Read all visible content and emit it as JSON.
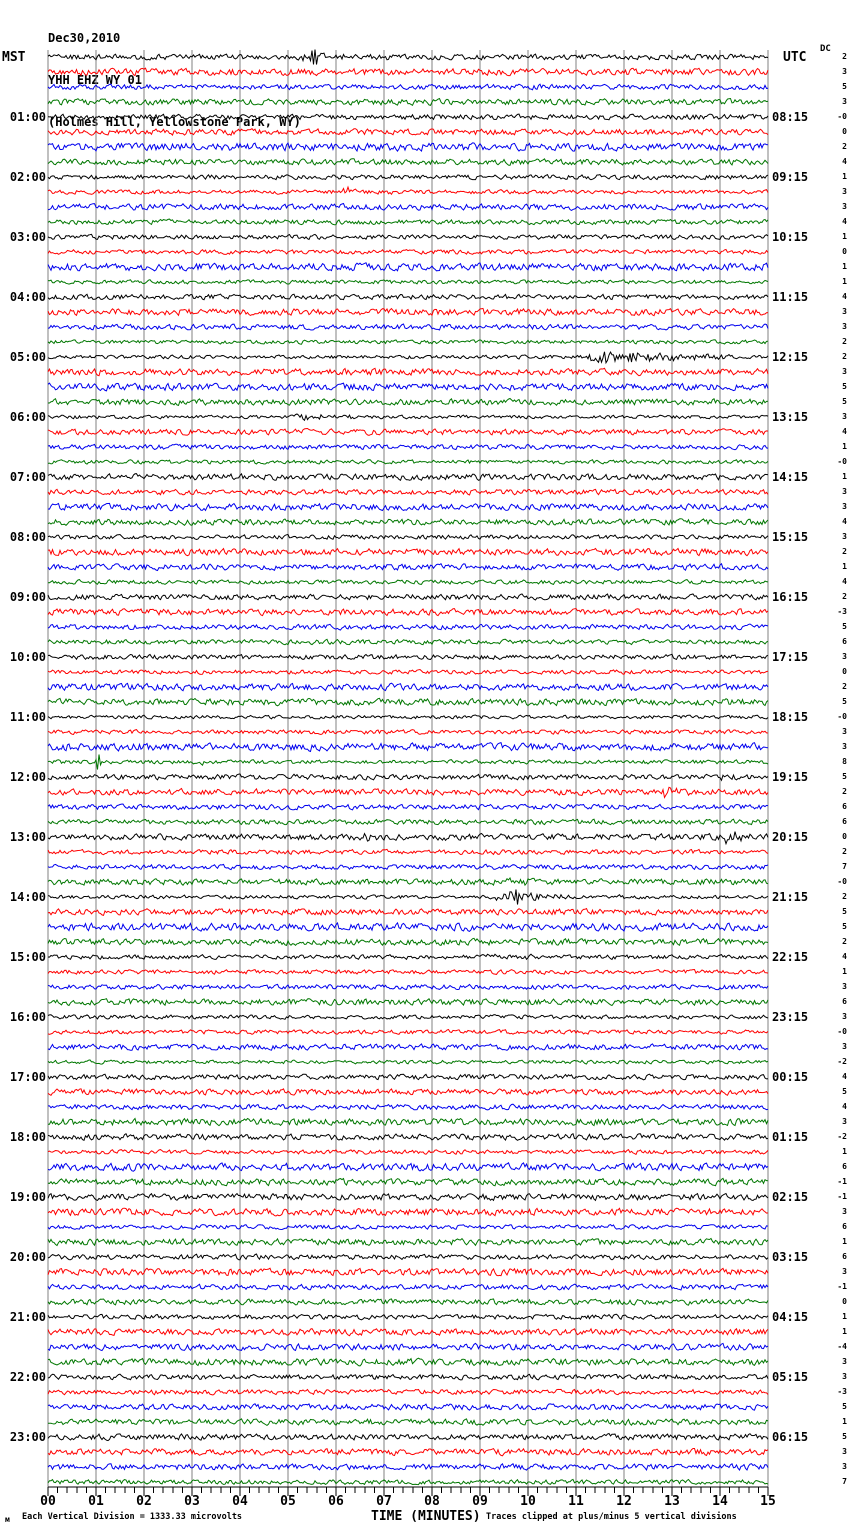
{
  "header": {
    "date": "Dec30,2010",
    "station": "YHH EHZ WY 01",
    "location": "(Holmes Hill, Yellowstone Park, WY)"
  },
  "axes": {
    "left_label": "MST",
    "right_label": "UTC",
    "dc_label": "DC",
    "x_title": "TIME (MINUTES)",
    "x_ticks": [
      "00",
      "01",
      "02",
      "03",
      "04",
      "05",
      "06",
      "07",
      "08",
      "09",
      "10",
      "11",
      "12",
      "13",
      "14",
      "15"
    ]
  },
  "footer": {
    "mark": "м",
    "scale_note": "Each Vertical Division = 1333.33 microvolts",
    "clip_note": "Traces clipped at plus/minus 5 vertical divisions"
  },
  "colors": {
    "trace_cycle": [
      "#000000",
      "#ff0000",
      "#0000ee",
      "#007700"
    ],
    "grid": "#808080",
    "axis": "#000000"
  },
  "chart_data": {
    "type": "line",
    "subtype": "helicorder-seismogram",
    "title": "YHH EHZ WY 01 (Holmes Hill, Yellowstone Park, WY) Dec30,2010",
    "xlabel": "TIME (MINUTES)",
    "x_range_minutes": [
      0,
      15
    ],
    "minutes_per_line": 15,
    "lines": 96,
    "lines_per_hour": 4,
    "trace_color_cycle": [
      "black",
      "red",
      "blue",
      "green"
    ],
    "clip_divisions": 5,
    "microvolts_per_division": 1333.33,
    "left_times_mst": [
      "01:00",
      "02:00",
      "03:00",
      "04:00",
      "05:00",
      "06:00",
      "07:00",
      "08:00",
      "09:00",
      "10:00",
      "11:00",
      "12:00",
      "13:00",
      "14:00",
      "15:00",
      "16:00",
      "17:00",
      "18:00",
      "19:00",
      "20:00",
      "21:00",
      "22:00",
      "23:00"
    ],
    "right_times_utc": [
      "08:15",
      "09:15",
      "10:15",
      "11:15",
      "12:15",
      "13:15",
      "14:15",
      "15:15",
      "16:15",
      "17:15",
      "18:15",
      "19:15",
      "20:15",
      "21:15",
      "22:15",
      "23:15",
      "00:15",
      "01:15",
      "02:15",
      "03:15",
      "04:15",
      "05:15",
      "06:15"
    ],
    "dc_offsets": [
      "2",
      "3",
      "5",
      "3",
      "-0",
      "0",
      "2",
      "4",
      "1",
      "3",
      "3",
      "4",
      "1",
      "0",
      "1",
      "1",
      "4",
      "3",
      "3",
      "2",
      "2",
      "3",
      "5",
      "5",
      "3",
      "4",
      "1",
      "-0",
      "1",
      "3",
      "3",
      "4",
      "3",
      "2",
      "1",
      "4",
      "2",
      "-3",
      "5",
      "6",
      "3",
      "0",
      "2",
      "5",
      "-0",
      "3",
      "3",
      "8",
      "5",
      "2",
      "6",
      "6",
      "0",
      "2",
      "7",
      "-0",
      "2",
      "5",
      "5",
      "2",
      "4",
      "1",
      "3",
      "6",
      "3",
      "-0",
      "3",
      "-2",
      "4",
      "5",
      "4",
      "3",
      "-2",
      "1",
      "6",
      "-1",
      "-1",
      "3",
      "6",
      "1",
      "6",
      "3",
      "-1",
      "0",
      "1",
      "1",
      "-4",
      "3",
      "3",
      "-3",
      "5",
      "1",
      "5",
      "3",
      "3",
      "7"
    ],
    "events": [
      {
        "trace": 0,
        "type": "burst",
        "start": 5.2,
        "end": 7.6,
        "amp": 5,
        "note": "event on 07:15 UTC line"
      },
      {
        "trace": 0,
        "type": "spike",
        "at": 5.55,
        "amp": 13,
        "note": "sharp spike"
      },
      {
        "trace": 9,
        "type": "burst",
        "start": 6.1,
        "end": 7.2,
        "amp": 5,
        "note": "event on 09:30 UTC red line"
      },
      {
        "trace": 20,
        "type": "burst",
        "start": 11.15,
        "end": 14.5,
        "amp": 11,
        "note": "largest event, 12:15 UTC line"
      },
      {
        "trace": 24,
        "type": "burst",
        "start": 5.0,
        "end": 6.6,
        "amp": 4,
        "note": "event on 13:15 UTC line"
      },
      {
        "trace": 47,
        "type": "spike",
        "at": 1.05,
        "amp": 9,
        "note": "green spike before 19:15"
      },
      {
        "trace": 47,
        "type": "burst",
        "start": 3.1,
        "end": 3.6,
        "amp": 3
      },
      {
        "trace": 48,
        "type": "burst",
        "start": 14.0,
        "end": 14.7,
        "amp": 4,
        "note": "19:15 UTC line right edge"
      },
      {
        "trace": 49,
        "type": "burst",
        "start": 12.7,
        "end": 13.6,
        "amp": 5,
        "note": "red burst"
      },
      {
        "trace": 52,
        "type": "burst",
        "start": 6.4,
        "end": 7.3,
        "amp": 6,
        "note": "20:15 UTC line"
      },
      {
        "trace": 52,
        "type": "burst",
        "start": 7.9,
        "end": 8.9,
        "amp": 3
      },
      {
        "trace": 52,
        "type": "burst",
        "start": 14.05,
        "end": 15.0,
        "amp": 8,
        "note": "clipped burst at right edge"
      },
      {
        "trace": 55,
        "type": "burst",
        "start": 9.2,
        "end": 10.5,
        "amp": 4
      },
      {
        "trace": 56,
        "type": "burst",
        "start": 9.15,
        "end": 12.3,
        "amp": 6,
        "note": "21:15 UTC line"
      },
      {
        "trace": 56,
        "type": "spike",
        "at": 9.75,
        "amp": 10
      },
      {
        "trace": 60,
        "type": "burst",
        "start": 8.9,
        "end": 10.2,
        "amp": 4,
        "note": "22:15 UTC line"
      }
    ]
  }
}
